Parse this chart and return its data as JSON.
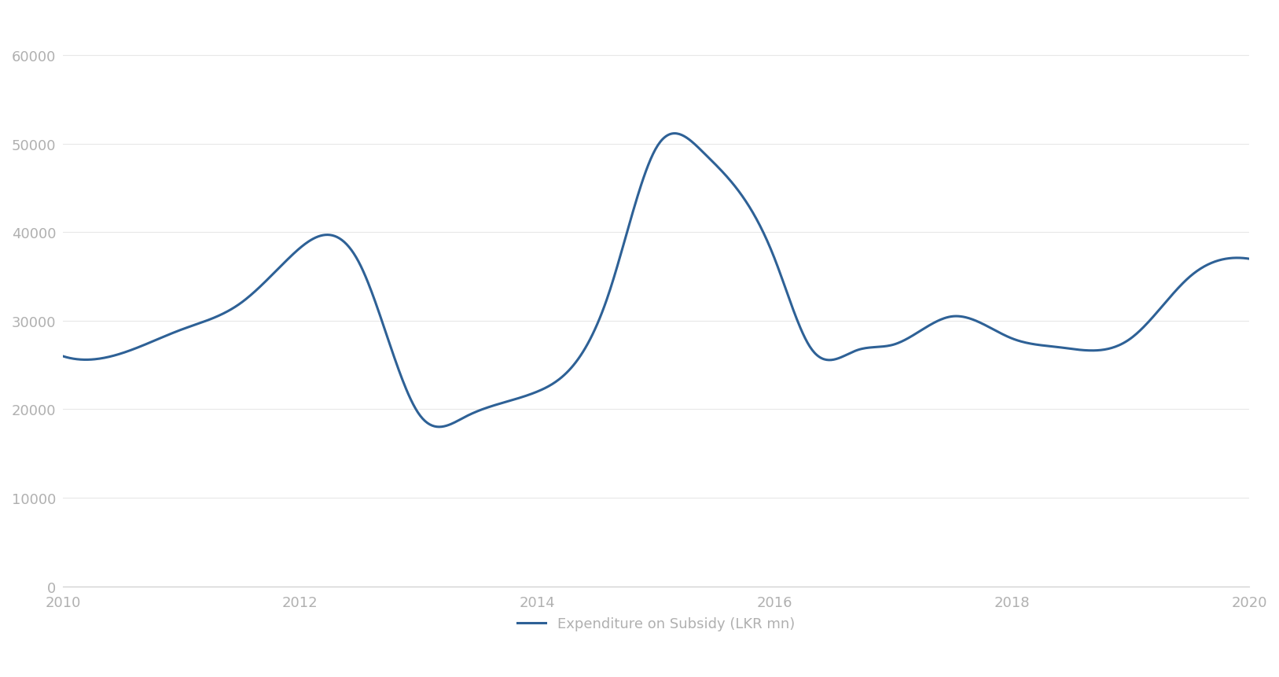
{
  "title": "",
  "xlabel": "",
  "ylabel": "",
  "legend_label": "Expenditure on Subsidy (LKR mn)",
  "line_color": "#2e6196",
  "line_width": 2.2,
  "background_color": "#ffffff",
  "x_points": [
    2010.0,
    2010.3,
    2011.0,
    2011.5,
    2011.9,
    2012.5,
    2013.0,
    2013.4,
    2014.0,
    2014.6,
    2015.0,
    2015.4,
    2016.0,
    2016.3,
    2016.7,
    2017.0,
    2017.5,
    2018.0,
    2018.4,
    2019.0,
    2019.5,
    2019.8,
    2020.0
  ],
  "y_points": [
    26000,
    25700,
    29000,
    32000,
    37000,
    36500,
    19500,
    19200,
    22000,
    33000,
    49500,
    49000,
    37000,
    27000,
    26700,
    27300,
    30500,
    28000,
    27000,
    28000,
    35000,
    37000,
    37000
  ],
  "ylim": [
    0,
    65000
  ],
  "xlim": [
    2010,
    2020
  ],
  "yticks": [
    0,
    10000,
    20000,
    30000,
    40000,
    50000,
    60000
  ],
  "xticks": [
    2010,
    2012,
    2014,
    2016,
    2018,
    2020
  ],
  "tick_color": "#b0b0b0",
  "tick_fontsize": 13,
  "spine_color": "#cccccc",
  "grid_color": "#e8e8e8",
  "legend_fontsize": 13
}
